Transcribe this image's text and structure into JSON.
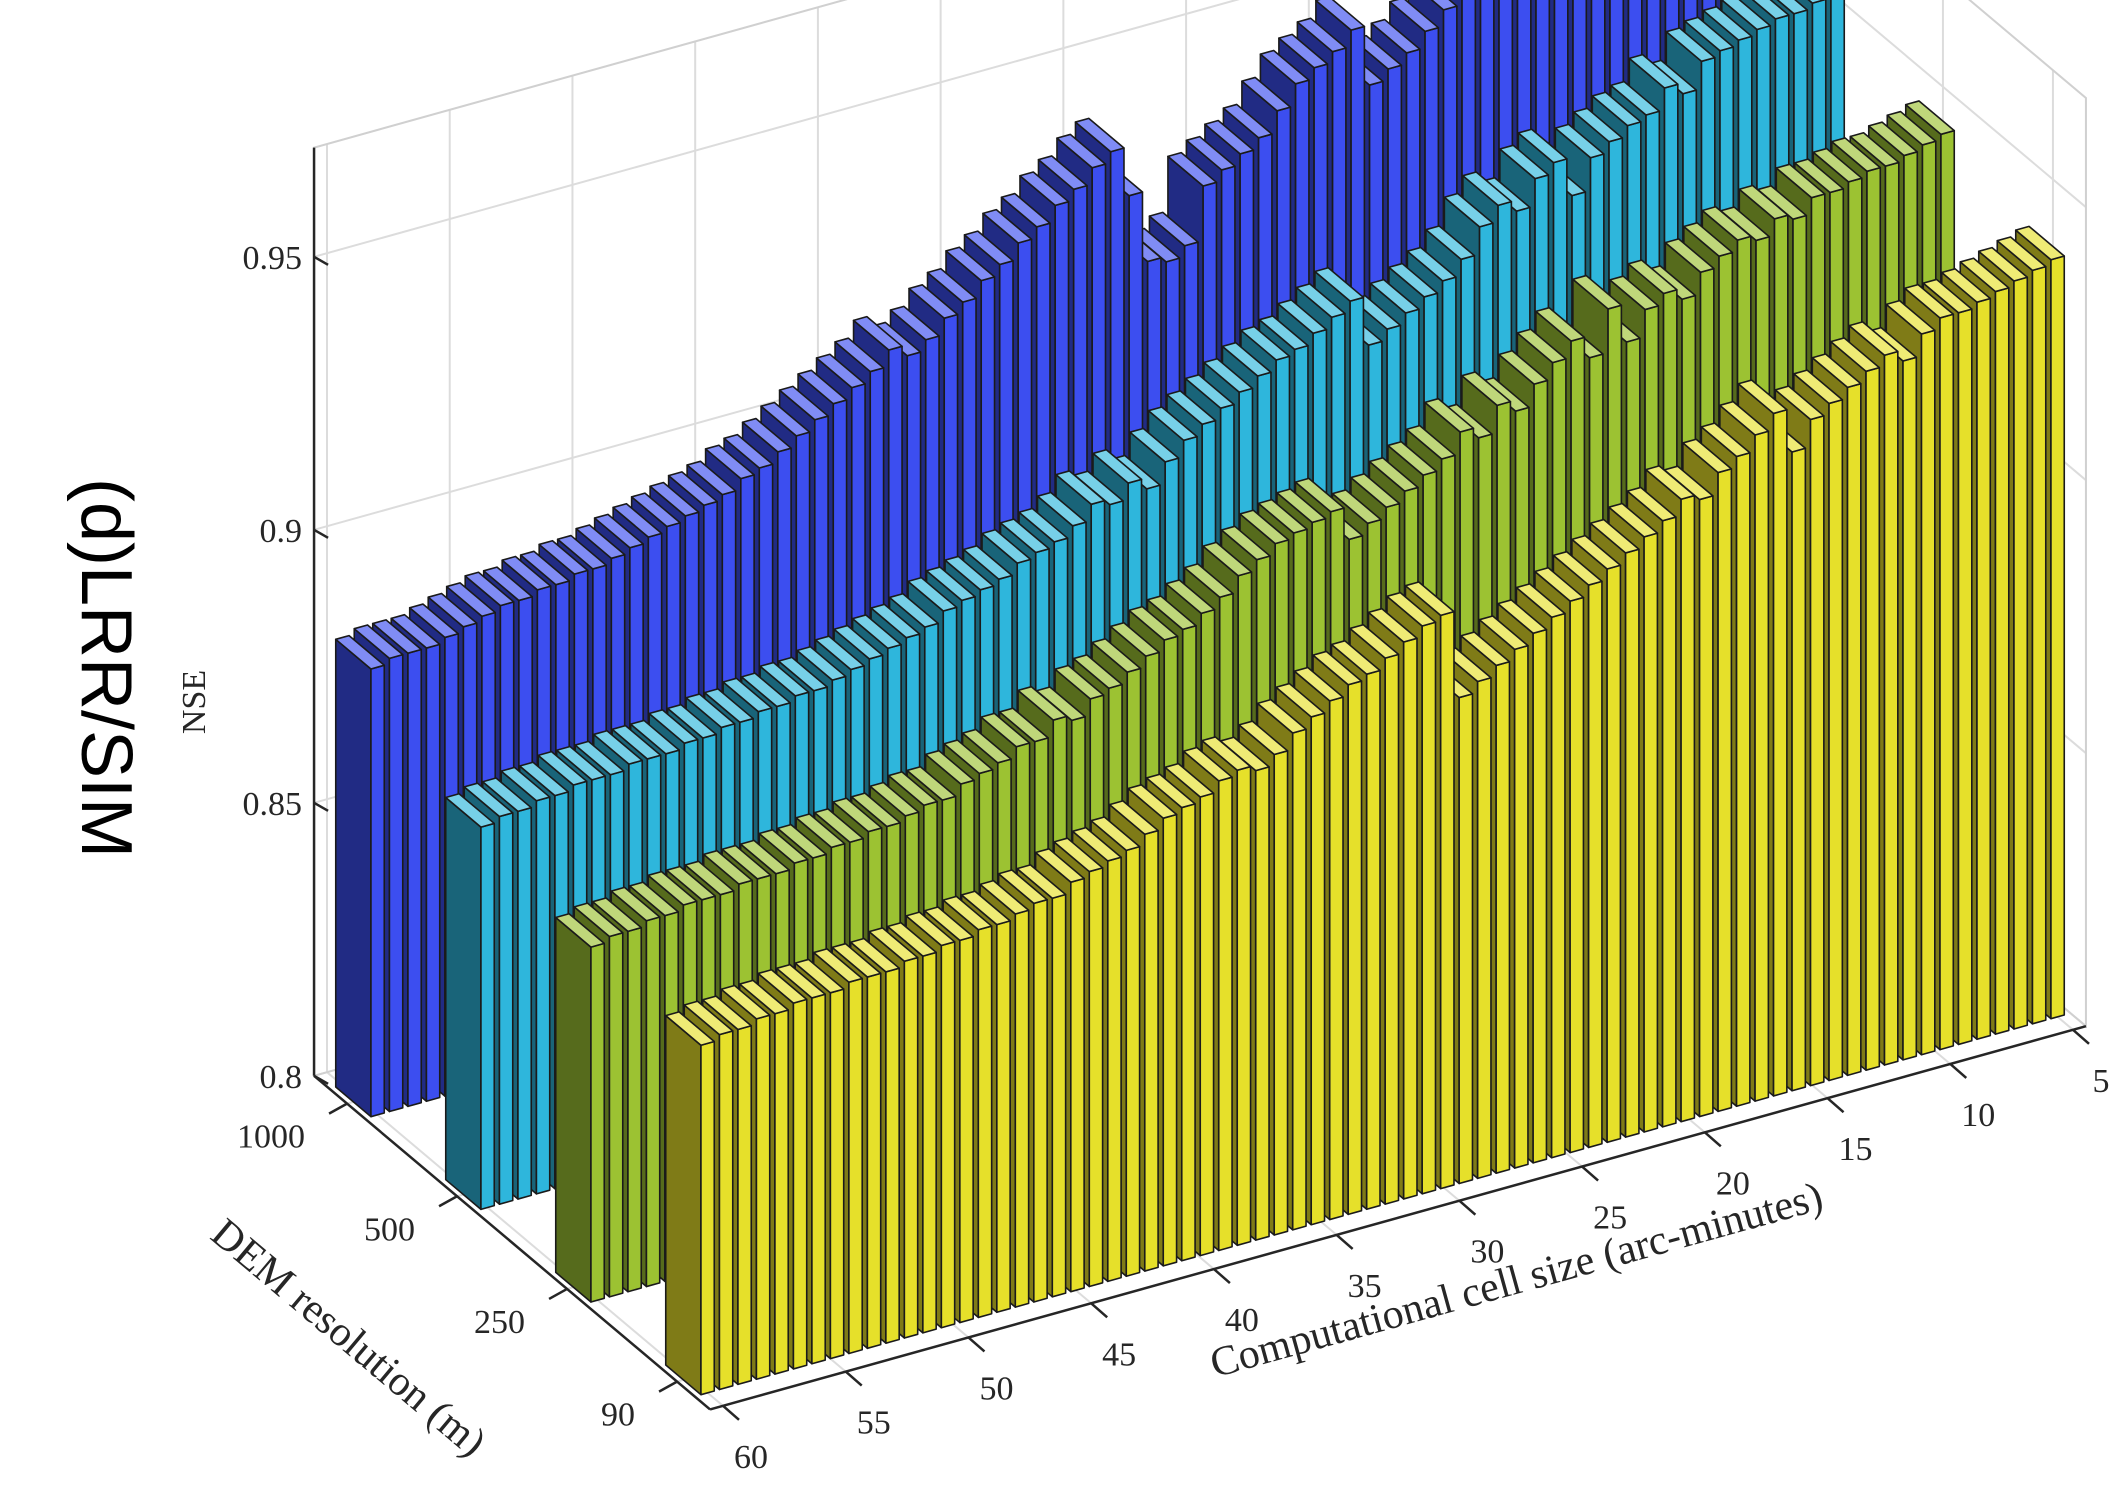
{
  "chart_data": {
    "type": "bar3d",
    "panel_label": "(d)LRR/SIM",
    "zlabel": "NSE",
    "xlabel": "Computational cell size (arc-minutes)",
    "ylabel": "DEM resolution (m)",
    "zlim": [
      0.8,
      0.97
    ],
    "zticks": [
      "0.8",
      "0.85",
      "0.9",
      "0.95"
    ],
    "x_tick_labels": [
      "5",
      "10",
      "15",
      "20",
      "25",
      "30",
      "35",
      "40",
      "45",
      "50",
      "55",
      "60"
    ],
    "y_tick_labels": [
      "1000",
      "500",
      "250",
      "90"
    ],
    "grid": true,
    "series": [
      {
        "dem": "1000",
        "color": "#3c4ef0",
        "values": [
          0.882,
          0.883,
          0.883,
          0.883,
          0.884,
          0.885,
          0.886,
          0.887,
          0.887,
          0.888,
          0.888,
          0.889,
          0.889,
          0.89,
          0.891,
          0.892,
          0.893,
          0.894,
          0.895,
          0.896,
          0.898,
          0.899,
          0.901,
          0.903,
          0.905,
          0.907,
          0.909,
          0.911,
          0.914,
          0.912,
          0.914,
          0.917,
          0.919,
          0.922,
          0.924,
          0.927,
          0.929,
          0.932,
          0.934,
          0.937,
          0.939,
          0.93,
          0.917,
          0.916,
          0.918,
          0.928,
          0.93,
          0.932,
          0.934,
          0.938,
          0.942,
          0.944,
          0.946,
          0.949,
          0.938,
          0.94,
          0.942,
          0.945,
          0.948,
          0.954,
          0.95,
          0.953,
          0.957,
          0.955,
          0.953,
          0.959,
          0.959,
          0.962,
          0.961,
          0.964,
          0.964,
          0.965,
          0.965,
          0.966
        ]
      },
      {
        "dem": "500",
        "color": "#2eb6dc",
        "values": [
          0.87,
          0.871,
          0.871,
          0.872,
          0.872,
          0.873,
          0.873,
          0.873,
          0.874,
          0.874,
          0.874,
          0.875,
          0.875,
          0.876,
          0.876,
          0.877,
          0.877,
          0.878,
          0.878,
          0.879,
          0.88,
          0.881,
          0.882,
          0.883,
          0.884,
          0.886,
          0.887,
          0.888,
          0.889,
          0.891,
          0.892,
          0.893,
          0.895,
          0.898,
          0.897,
          0.9,
          0.898,
          0.902,
          0.905,
          0.907,
          0.909,
          0.911,
          0.913,
          0.915,
          0.916,
          0.918,
          0.92,
          0.922,
          0.913,
          0.915,
          0.917,
          0.919,
          0.921,
          0.924,
          0.929,
          0.932,
          0.93,
          0.935,
          0.937,
          0.93,
          0.936,
          0.938,
          0.94,
          0.941,
          0.945,
          0.943,
          0.948,
          0.949,
          0.95,
          0.951,
          0.952,
          0.952,
          0.953,
          0.954
        ]
      },
      {
        "dem": "250",
        "color": "#9cc232",
        "values": [
          0.865,
          0.866,
          0.866,
          0.867,
          0.867,
          0.868,
          0.868,
          0.868,
          0.869,
          0.869,
          0.869,
          0.87,
          0.87,
          0.871,
          0.871,
          0.872,
          0.872,
          0.873,
          0.874,
          0.874,
          0.876,
          0.877,
          0.878,
          0.88,
          0.88,
          0.883,
          0.882,
          0.885,
          0.886,
          0.888,
          0.89,
          0.892,
          0.893,
          0.895,
          0.897,
          0.9,
          0.902,
          0.904,
          0.905,
          0.906,
          0.907,
          0.901,
          0.903,
          0.905,
          0.907,
          0.909,
          0.911,
          0.915,
          0.913,
          0.918,
          0.916,
          0.92,
          0.923,
          0.926,
          0.922,
          0.93,
          0.923,
          0.928,
          0.93,
          0.928,
          0.932,
          0.934,
          0.936,
          0.935,
          0.938,
          0.937,
          0.94,
          0.94,
          0.941,
          0.942,
          0.942,
          0.943,
          0.944,
          0.945
        ]
      },
      {
        "dem": "90",
        "color": "#e6e02a",
        "values": [
          0.864,
          0.865,
          0.865,
          0.866,
          0.866,
          0.867,
          0.867,
          0.867,
          0.868,
          0.868,
          0.868,
          0.869,
          0.869,
          0.87,
          0.87,
          0.871,
          0.871,
          0.872,
          0.873,
          0.873,
          0.875,
          0.876,
          0.877,
          0.878,
          0.88,
          0.882,
          0.883,
          0.884,
          0.886,
          0.887,
          0.886,
          0.888,
          0.891,
          0.893,
          0.895,
          0.897,
          0.898,
          0.9,
          0.902,
          0.904,
          0.905,
          0.889,
          0.891,
          0.893,
          0.895,
          0.897,
          0.899,
          0.901,
          0.903,
          0.905,
          0.907,
          0.909,
          0.911,
          0.914,
          0.913,
          0.917,
          0.919,
          0.922,
          0.925,
          0.917,
          0.922,
          0.924,
          0.926,
          0.928,
          0.93,
          0.928,
          0.932,
          0.934,
          0.934,
          0.935,
          0.936,
          0.937,
          0.938,
          0.939
        ]
      }
    ]
  }
}
